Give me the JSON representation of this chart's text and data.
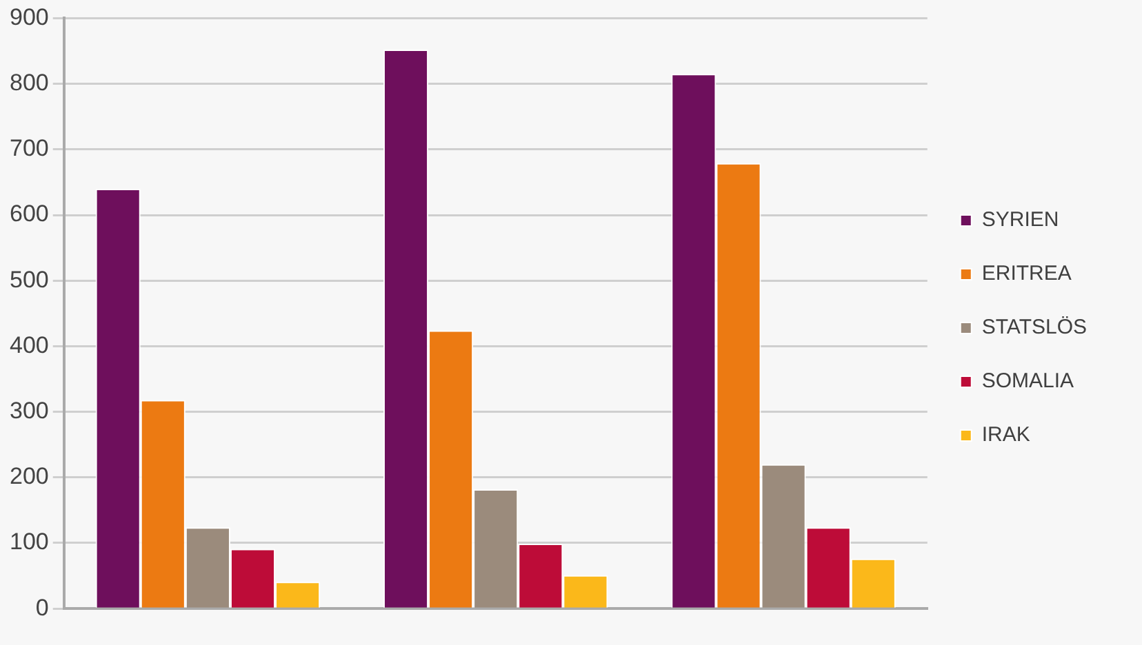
{
  "chart_data": {
    "type": "bar",
    "categories": [
      null,
      null,
      null
    ],
    "series": [
      {
        "name": "SYRIEN",
        "color": "#6e0f5c",
        "values": [
          640,
          852,
          815
        ]
      },
      {
        "name": "ERITREA",
        "color": "#ec7a12",
        "values": [
          318,
          424,
          679
        ]
      },
      {
        "name": "STATSLÖS",
        "color": "#9b8b7c",
        "values": [
          124,
          182,
          220
        ]
      },
      {
        "name": "SOMALIA",
        "color": "#bd0c38",
        "values": [
          91,
          99,
          124
        ]
      },
      {
        "name": "IRAK",
        "color": "#fbb81a",
        "values": [
          41,
          51,
          76
        ]
      }
    ],
    "ylim": [
      0,
      900
    ],
    "yticks": [
      0,
      100,
      200,
      300,
      400,
      500,
      600,
      700,
      800,
      900
    ],
    "grid": "y",
    "legend": "right"
  }
}
